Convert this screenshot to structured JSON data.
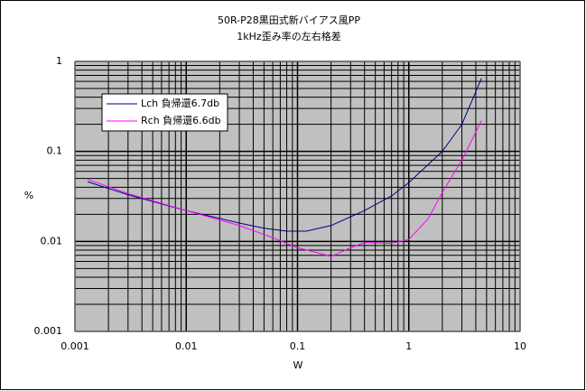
{
  "chart_data": {
    "type": "line",
    "title": "50R-P28黒田式新バイアス風PP",
    "subtitle": "1kHz歪み率の左右格差",
    "x_label": "W",
    "y_label": "%",
    "log_x": true,
    "log_y": true,
    "grid": true,
    "legend": "upper left",
    "xlim": [
      0.001,
      10
    ],
    "ylim": [
      0.001,
      1
    ],
    "xticks": [
      0.001,
      0.01,
      0.1,
      1,
      10
    ],
    "yticks": [
      0.001,
      0.01,
      0.1,
      1
    ],
    "series": [
      {
        "name": "Lch 負帰還6.7db",
        "color": "#000080",
        "x": [
          0.0013,
          0.003,
          0.01,
          0.03,
          0.05,
          0.08,
          0.12,
          0.2,
          0.4,
          0.7,
          1,
          2,
          3,
          4.5
        ],
        "values": [
          0.046,
          0.033,
          0.022,
          0.016,
          0.014,
          0.013,
          0.013,
          0.015,
          0.022,
          0.032,
          0.045,
          0.1,
          0.2,
          0.65
        ]
      },
      {
        "name": "Rch 負帰還6.6db",
        "color": "#ff00ff",
        "x": [
          0.0013,
          0.003,
          0.01,
          0.03,
          0.06,
          0.1,
          0.15,
          0.2,
          0.3,
          0.4,
          0.7,
          1,
          1.5,
          2,
          3,
          4.5
        ],
        "values": [
          0.049,
          0.034,
          0.022,
          0.015,
          0.011,
          0.0085,
          0.0075,
          0.0068,
          0.0085,
          0.0097,
          0.0095,
          0.0105,
          0.018,
          0.035,
          0.08,
          0.22
        ]
      }
    ]
  }
}
